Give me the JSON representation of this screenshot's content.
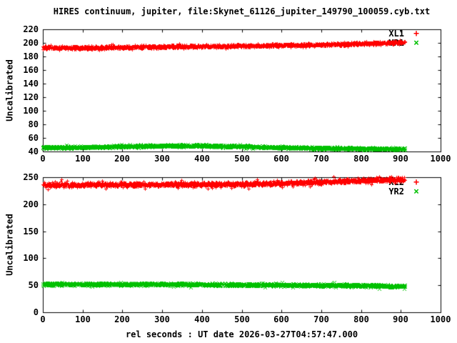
{
  "title": "HIRES continuum, jupiter, file:Skynet_61126_jupiter_149790_100059.cyb.txt",
  "xlabel": "rel seconds : UT date 2026-03-27T04:57:47.000",
  "colors": {
    "background": "#ffffff",
    "axis": "#000000",
    "series_red": "#ff0000",
    "series_green": "#00c000"
  },
  "chart_data": [
    {
      "type": "scatter",
      "ylabel": "Uncalibrated",
      "xlim": [
        0,
        1000
      ],
      "ylim": [
        40,
        220
      ],
      "xticks": [
        0,
        100,
        200,
        300,
        400,
        500,
        600,
        700,
        800,
        900,
        1000
      ],
      "yticks": [
        40,
        60,
        80,
        100,
        120,
        140,
        160,
        180,
        200,
        220
      ],
      "grid": false,
      "legend_position": "top-right",
      "series": [
        {
          "name": "XL1",
          "marker": "plus",
          "marker_glyph": "+",
          "color": "#ff0000",
          "x": [
            0,
            100,
            200,
            300,
            400,
            500,
            600,
            700,
            800,
            900,
            910
          ],
          "y": [
            193,
            193,
            193.5,
            194.5,
            195,
            195.5,
            196.5,
            197.5,
            199,
            200.5,
            201
          ],
          "noise": 2.8
        },
        {
          "name": "YR1",
          "marker": "cross",
          "marker_glyph": "×",
          "color": "#00c000",
          "x": [
            0,
            100,
            200,
            300,
            400,
            500,
            600,
            700,
            800,
            900,
            910
          ],
          "y": [
            46,
            46.5,
            47.5,
            48.5,
            48.5,
            47.5,
            46,
            45,
            44.5,
            44,
            44
          ],
          "noise": 2.0
        }
      ]
    },
    {
      "type": "scatter",
      "ylabel": "Uncalibrated",
      "xlim": [
        0,
        1000
      ],
      "ylim": [
        0,
        250
      ],
      "xticks": [
        0,
        100,
        200,
        300,
        400,
        500,
        600,
        700,
        800,
        900,
        1000
      ],
      "yticks": [
        0,
        50,
        100,
        150,
        200,
        250
      ],
      "grid": false,
      "legend_position": "top-right",
      "series": [
        {
          "name": "XL2",
          "marker": "plus",
          "marker_glyph": "+",
          "color": "#ff0000",
          "x": [
            0,
            100,
            200,
            300,
            400,
            500,
            600,
            700,
            800,
            900,
            910
          ],
          "y": [
            236,
            236,
            236.5,
            237,
            237,
            237.5,
            239,
            241.5,
            244,
            246.5,
            247
          ],
          "noise": 5.0
        },
        {
          "name": "YR2",
          "marker": "cross",
          "marker_glyph": "×",
          "color": "#00c000",
          "x": [
            0,
            100,
            200,
            300,
            400,
            500,
            600,
            700,
            800,
            900,
            910
          ],
          "y": [
            52,
            52,
            52,
            52,
            51.5,
            51,
            50.5,
            50,
            49.5,
            48.5,
            48
          ],
          "noise": 3.0
        }
      ]
    }
  ]
}
